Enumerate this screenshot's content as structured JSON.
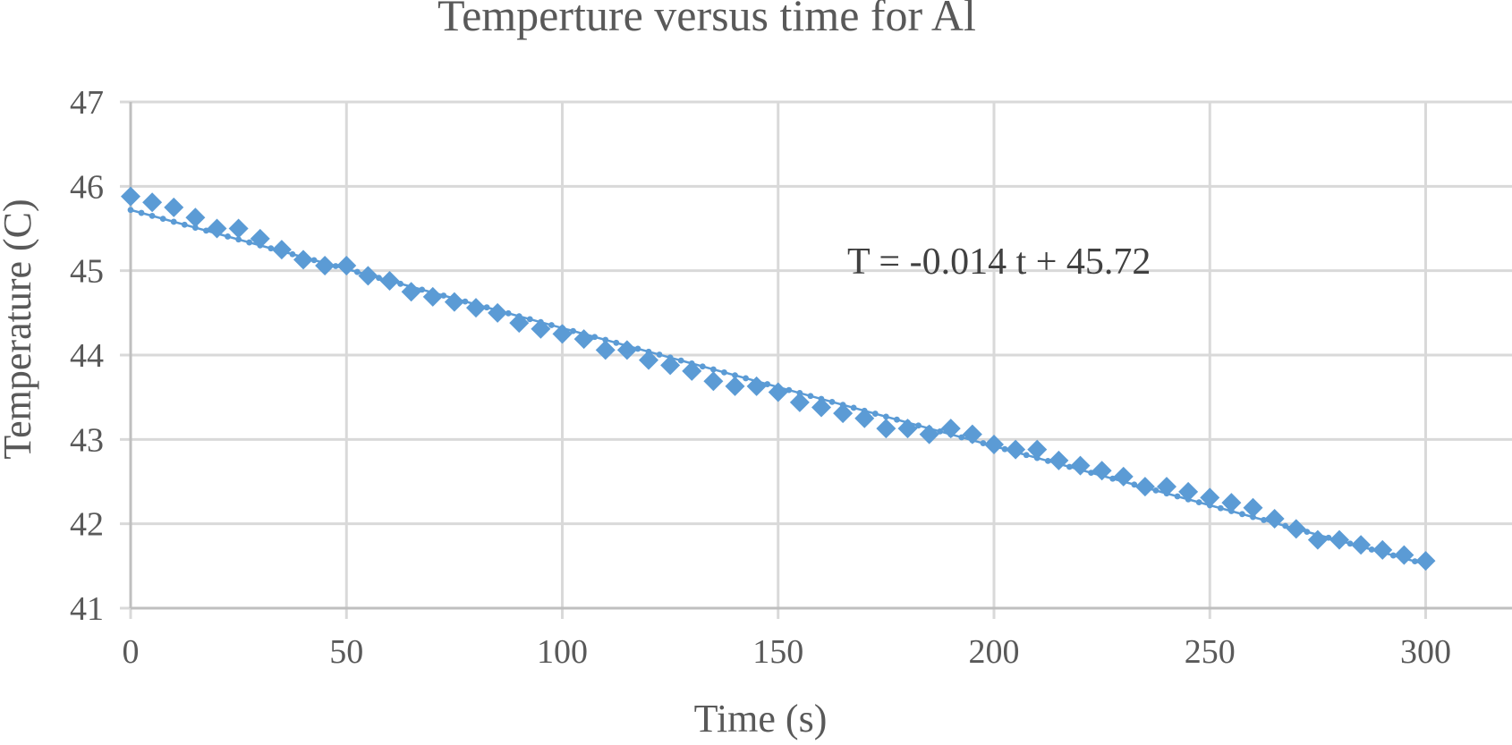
{
  "chart_data": {
    "type": "scatter",
    "title": "Temperture versus time for Al",
    "xlabel": "Time (s)",
    "ylabel": "Temperature (C)",
    "xlim": [
      0,
      320
    ],
    "ylim": [
      41,
      47
    ],
    "x_ticks": [
      "0",
      "50",
      "100",
      "150",
      "200",
      "250",
      "300"
    ],
    "y_ticks": [
      "41",
      "42",
      "43",
      "44",
      "45",
      "46",
      "47"
    ],
    "grid": true,
    "legend": "none",
    "colors": {
      "marker": "#5B9BD5",
      "trendline": "#5B9BD5",
      "grid": "#D9D9D9",
      "text": "#595959"
    },
    "series": [
      {
        "marker": "diamond",
        "x": [
          0,
          5,
          10,
          15,
          20,
          25,
          30,
          35,
          40,
          45,
          50,
          55,
          60,
          65,
          70,
          75,
          80,
          85,
          90,
          95,
          100,
          105,
          110,
          115,
          120,
          125,
          130,
          135,
          140,
          145,
          150,
          155,
          160,
          165,
          170,
          175,
          180,
          185,
          190,
          195,
          200,
          205,
          210,
          215,
          220,
          225,
          230,
          235,
          240,
          245,
          250,
          255,
          260,
          265,
          270,
          275,
          280,
          285,
          290,
          295,
          300
        ],
        "y": [
          45.88,
          45.81,
          45.75,
          45.63,
          45.5,
          45.5,
          45.38,
          45.25,
          45.13,
          45.06,
          45.06,
          44.94,
          44.88,
          44.75,
          44.69,
          44.63,
          44.56,
          44.5,
          44.38,
          44.31,
          44.25,
          44.19,
          44.06,
          44.06,
          43.94,
          43.88,
          43.81,
          43.69,
          43.63,
          43.63,
          43.56,
          43.44,
          43.38,
          43.31,
          43.25,
          43.13,
          43.13,
          43.06,
          43.13,
          43.06,
          42.94,
          42.88,
          42.88,
          42.75,
          42.69,
          42.63,
          42.56,
          42.44,
          42.44,
          42.38,
          42.31,
          42.25,
          42.19,
          42.06,
          41.94,
          41.81,
          41.81,
          41.75,
          41.69,
          41.63,
          41.56
        ]
      }
    ],
    "trendline": {
      "type": "linear",
      "slope": -0.014,
      "intercept": 45.72,
      "x_range": [
        0,
        300
      ],
      "label": "T = -0.014 t + 45.72"
    }
  }
}
